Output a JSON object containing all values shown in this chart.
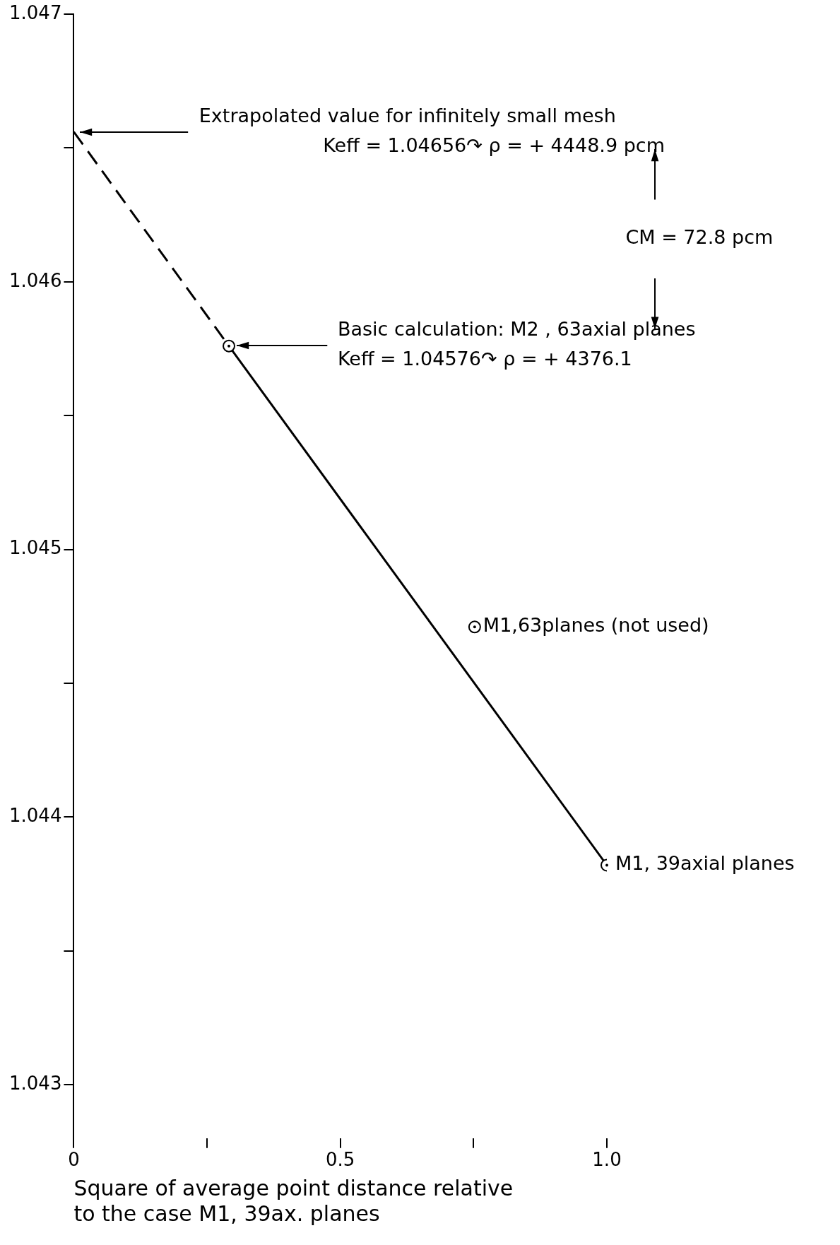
{
  "chart_data": {
    "type": "line",
    "xlabel": "Square of average point distance relative\nto the case M1, 39ax. planes",
    "xlim": [
      0,
      1
    ],
    "xticks": [
      0,
      {
        "value": 0.25,
        "label": null
      },
      0.5,
      {
        "value": 0.75,
        "label": null
      },
      {
        "value": 1,
        "label": "1.0"
      }
    ],
    "ylim": [
      1.0428,
      1.047
    ],
    "yticks": [
      {
        "value": 1.043,
        "label": "1.043"
      },
      {
        "value": 1.0435,
        "label": null
      },
      {
        "value": 1.044,
        "label": "1.044"
      },
      {
        "value": 1.0445,
        "label": null
      },
      {
        "value": 1.045,
        "label": "1.045"
      },
      {
        "value": 1.0455,
        "label": null
      },
      {
        "value": 1.046,
        "label": "1.046"
      },
      {
        "value": 1.0465,
        "label": null
      },
      {
        "value": 1.047,
        "label": "1.047"
      }
    ],
    "grid": false,
    "legend": false,
    "series": [
      {
        "color": "#000000",
        "x": [
          0.291,
          1
        ],
        "values": [
          1.04576,
          1.04382
        ],
        "marker": "circle",
        "line_style": "solid"
      },
      {
        "color": "#000000",
        "x": [
          0,
          0.291
        ],
        "values": [
          1.04656,
          1.04576
        ],
        "marker": "none",
        "line_style": "dashed"
      },
      {
        "type": "scatter",
        "color": "#000000",
        "x": [
          0.752
        ],
        "values": [
          1.04471
        ],
        "marker": "circle"
      }
    ],
    "annotations": [
      "Extrapolated value for infinitely small mesh\nKeff = 1.04656↷ ρ = + 4448.9 pcm",
      "Basic calculation: M2 , 63axial planes\nKeff = 1.04576↷ ρ = + 4376.1",
      {
        "text": "M1,63planes (not used)",
        "x": 0.752,
        "y": 1.04471
      },
      {
        "text": "M1, 39axial planes",
        "x": 1,
        "y": 1.04382
      },
      "CM = 72.8 pcm"
    ]
  }
}
